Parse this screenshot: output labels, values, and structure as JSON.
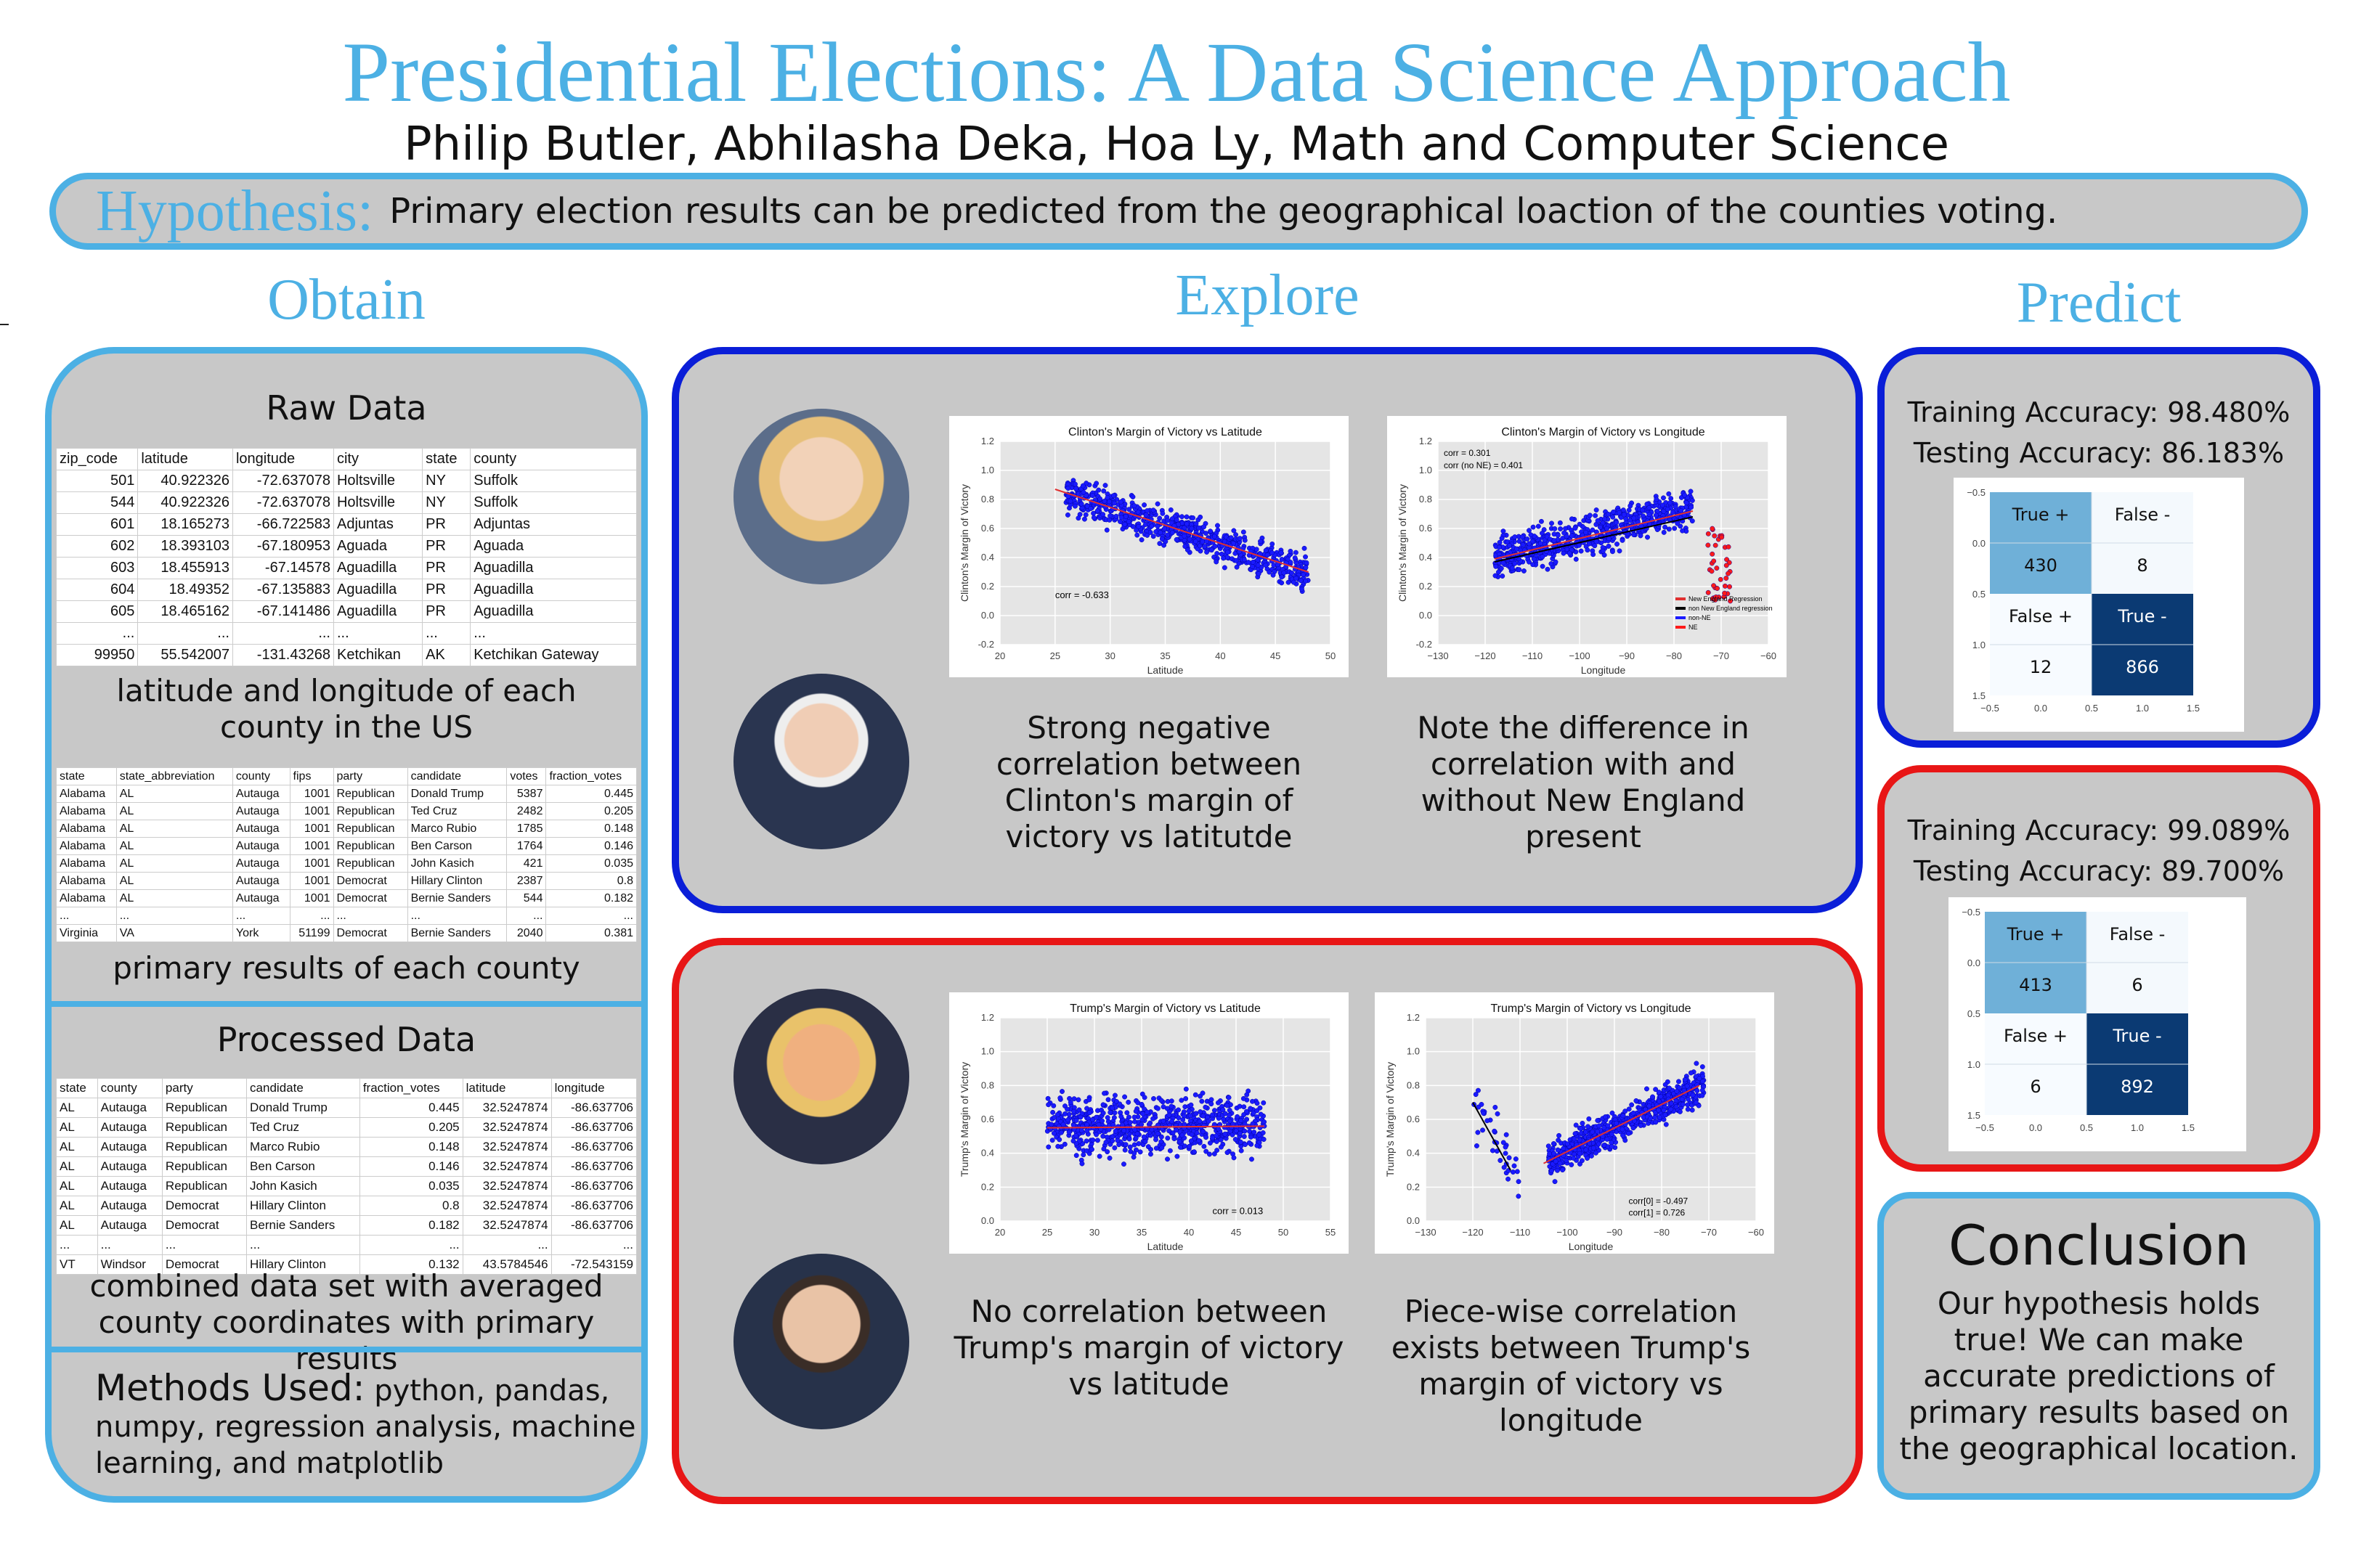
{
  "title": "Presidential Elections: A Data Science Approach",
  "authors": "Philip Butler, Abhilasha Deka, Hoa Ly, Math and Computer Science",
  "hypothesis": {
    "label": "Hypothesis:",
    "text": "Primary election results can be predicted from the geographical loaction of the counties voting."
  },
  "columns": {
    "obtain": "Obtain",
    "explore": "Explore",
    "predict": "Predict"
  },
  "obtain": {
    "raw_heading": "Raw Data",
    "raw_table": {
      "headers": [
        "zip_code",
        "latitude",
        "longitude",
        "city",
        "state",
        "county"
      ],
      "rows": [
        [
          "501",
          "40.922326",
          "-72.637078",
          "Holtsville",
          "NY",
          "Suffolk"
        ],
        [
          "544",
          "40.922326",
          "-72.637078",
          "Holtsville",
          "NY",
          "Suffolk"
        ],
        [
          "601",
          "18.165273",
          "-66.722583",
          "Adjuntas",
          "PR",
          "Adjuntas"
        ],
        [
          "602",
          "18.393103",
          "-67.180953",
          "Aguada",
          "PR",
          "Aguada"
        ],
        [
          "603",
          "18.455913",
          "-67.14578",
          "Aguadilla",
          "PR",
          "Aguadilla"
        ],
        [
          "604",
          "18.49352",
          "-67.135883",
          "Aguadilla",
          "PR",
          "Aguadilla"
        ],
        [
          "605",
          "18.465162",
          "-67.141486",
          "Aguadilla",
          "PR",
          "Aguadilla"
        ],
        [
          "...",
          "...",
          "...",
          "...",
          "...",
          "..."
        ],
        [
          "99950",
          "55.542007",
          "-131.43268",
          "Ketchikan",
          "AK",
          "Ketchikan Gateway"
        ]
      ]
    },
    "raw_caption": "latitude and longitude of each county in the US",
    "primary_table": {
      "headers": [
        "state",
        "state_abbreviation",
        "county",
        "fips",
        "party",
        "candidate",
        "votes",
        "fraction_votes"
      ],
      "rows": [
        [
          "Alabama",
          "AL",
          "Autauga",
          "1001",
          "Republican",
          "Donald Trump",
          "5387",
          "0.445"
        ],
        [
          "Alabama",
          "AL",
          "Autauga",
          "1001",
          "Republican",
          "Ted Cruz",
          "2482",
          "0.205"
        ],
        [
          "Alabama",
          "AL",
          "Autauga",
          "1001",
          "Republican",
          "Marco Rubio",
          "1785",
          "0.148"
        ],
        [
          "Alabama",
          "AL",
          "Autauga",
          "1001",
          "Republican",
          "Ben Carson",
          "1764",
          "0.146"
        ],
        [
          "Alabama",
          "AL",
          "Autauga",
          "1001",
          "Republican",
          "John Kasich",
          "421",
          "0.035"
        ],
        [
          "Alabama",
          "AL",
          "Autauga",
          "1001",
          "Democrat",
          "Hillary Clinton",
          "2387",
          "0.8"
        ],
        [
          "Alabama",
          "AL",
          "Autauga",
          "1001",
          "Democrat",
          "Bernie Sanders",
          "544",
          "0.182"
        ],
        [
          "...",
          "...",
          "...",
          "...",
          "...",
          "...",
          "...",
          "..."
        ],
        [
          "Virginia",
          "VA",
          "York",
          "51199",
          "Democrat",
          "Bernie Sanders",
          "2040",
          "0.381"
        ]
      ]
    },
    "primary_caption": "primary results of each county",
    "processed_heading": "Processed Data",
    "processed_table": {
      "headers": [
        "state",
        "county",
        "party",
        "candidate",
        "fraction_votes",
        "latitude",
        "longitude"
      ],
      "rows": [
        [
          "AL",
          "Autauga",
          "Republican",
          "Donald Trump",
          "0.445",
          "32.5247874",
          "-86.637706"
        ],
        [
          "AL",
          "Autauga",
          "Republican",
          "Ted Cruz",
          "0.205",
          "32.5247874",
          "-86.637706"
        ],
        [
          "AL",
          "Autauga",
          "Republican",
          "Marco Rubio",
          "0.148",
          "32.5247874",
          "-86.637706"
        ],
        [
          "AL",
          "Autauga",
          "Republican",
          "Ben Carson",
          "0.146",
          "32.5247874",
          "-86.637706"
        ],
        [
          "AL",
          "Autauga",
          "Republican",
          "John Kasich",
          "0.035",
          "32.5247874",
          "-86.637706"
        ],
        [
          "AL",
          "Autauga",
          "Democrat",
          "Hillary Clinton",
          "0.8",
          "32.5247874",
          "-86.637706"
        ],
        [
          "AL",
          "Autauga",
          "Democrat",
          "Bernie Sanders",
          "0.182",
          "32.5247874",
          "-86.637706"
        ],
        [
          "...",
          "...",
          "...",
          "...",
          "...",
          "...",
          "..."
        ],
        [
          "VT",
          "Windsor",
          "Democrat",
          "Hillary Clinton",
          "0.132",
          "43.5784546",
          "-72.543159"
        ]
      ]
    },
    "processed_caption": "combined data set with averaged county coordinates with primary results",
    "methods_label": "Methods Used:",
    "methods_text": "python, pandas, numpy, regression analysis, machine learning, and matplotlib"
  },
  "explore": {
    "clinton_caption": "Strong negative correlation between Clinton's margin of victory vs latitutde",
    "clinton_lon_caption": "Note the difference in correlation with and without New England present",
    "trump_caption": "No correlation between Trump's margin of victory vs latitude",
    "trump_lon_caption": "Piece-wise correlation exists between Trump's margin of victory vs longitude"
  },
  "chart_data": [
    {
      "type": "scatter",
      "title": "Clinton's Margin of Victory vs Latitude",
      "xlabel": "Latitude",
      "ylabel": "Clinton's Margin of Victory",
      "xlim": [
        20,
        50
      ],
      "ylim": [
        -0.2,
        1.2
      ],
      "xticks": [
        "20",
        "25",
        "30",
        "35",
        "40",
        "45",
        "50"
      ],
      "yticks": [
        "-0.2",
        "0.0",
        "0.2",
        "0.4",
        "0.6",
        "0.8",
        "1.0",
        "1.2"
      ],
      "annotation": "corr = -0.633",
      "regression": [
        [
          25,
          0.87
        ],
        [
          48,
          0.3
        ]
      ]
    },
    {
      "type": "scatter",
      "title": "Clinton's Margin of Victory vs Longitude",
      "xlabel": "Longitude",
      "ylabel": "Clinton's Margin of Victory",
      "xlim": [
        -130,
        -60
      ],
      "ylim": [
        -0.2,
        1.2
      ],
      "xticks": [
        "−130",
        "−120",
        "−110",
        "−100",
        "−90",
        "−80",
        "−70",
        "−60"
      ],
      "yticks": [
        "-0.2",
        "0.0",
        "0.2",
        "0.4",
        "0.6",
        "0.8",
        "1.0",
        "1.2"
      ],
      "annotation": [
        "corr = 0.301",
        "corr (no NE) = 0.401"
      ],
      "legend": [
        "New England Regression",
        "non New England regression",
        "non-NE",
        "NE"
      ],
      "regression": [
        [
          -118,
          0.39
        ],
        [
          -76,
          0.72
        ]
      ],
      "regression2": [
        [
          -118,
          0.37
        ],
        [
          -76,
          0.68
        ]
      ]
    },
    {
      "type": "scatter",
      "title": "Trump's Margin of Victory vs Latitude",
      "xlabel": "Latitude",
      "ylabel": "Trump's Margin of Victory",
      "xlim": [
        20,
        55
      ],
      "ylim": [
        0.0,
        1.2
      ],
      "xticks": [
        "20",
        "25",
        "30",
        "35",
        "40",
        "45",
        "50",
        "55"
      ],
      "yticks": [
        "0.0",
        "0.2",
        "0.4",
        "0.6",
        "0.8",
        "1.0",
        "1.2"
      ],
      "annotation": "corr = 0.013",
      "regression": [
        [
          25,
          0.55
        ],
        [
          48,
          0.56
        ]
      ]
    },
    {
      "type": "scatter",
      "title": "Trump's Margin of Victory vs Longitude",
      "xlabel": "Longitude",
      "ylabel": "Trump's Margin of Victory",
      "xlim": [
        -130,
        -60
      ],
      "ylim": [
        0.0,
        1.2
      ],
      "xticks": [
        "−130",
        "−120",
        "−110",
        "−100",
        "−90",
        "−80",
        "−70",
        "−60"
      ],
      "yticks": [
        "0.0",
        "0.2",
        "0.4",
        "0.6",
        "0.8",
        "1.0",
        "1.2"
      ],
      "annotation": [
        "corr[0] = -0.497",
        "corr[1] = 0.726"
      ],
      "regression": [
        [
          -105,
          0.34
        ],
        [
          -72,
          0.8
        ]
      ],
      "regression2": [
        [
          -120,
          0.7
        ],
        [
          -112,
          0.3
        ]
      ]
    }
  ],
  "predict": {
    "model1": {
      "training": "Training Accuracy: 98.480%",
      "testing": "Testing Accuracy: 86.183%",
      "cells": [
        [
          "True +",
          "430"
        ],
        [
          "False -",
          "8"
        ],
        [
          "False +",
          "12"
        ],
        [
          "True -",
          "866"
        ]
      ]
    },
    "model2": {
      "training": "Training Accuracy: 99.089%",
      "testing": "Testing Accuracy: 89.700%",
      "cells": [
        [
          "True +",
          "413"
        ],
        [
          "False -",
          "6"
        ],
        [
          "False +",
          "6"
        ],
        [
          "True -",
          "892"
        ]
      ]
    },
    "cm_yticks": [
      "−0.5",
      "0.0",
      "0.5",
      "1.0",
      "1.5"
    ],
    "cm_xticks": [
      "−0.5",
      "0.0",
      "0.5",
      "1.0",
      "1.5"
    ]
  },
  "conclusion": {
    "title": "Conclusion",
    "text": "Our hypothesis holds true! We can make accurate predictions of primary results based on the geographical location."
  }
}
